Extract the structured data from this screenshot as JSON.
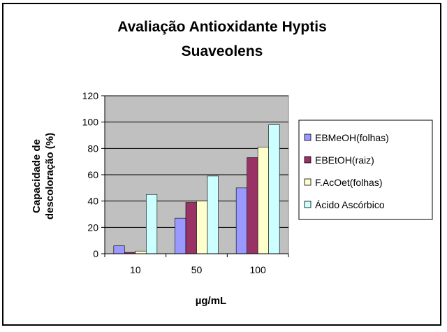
{
  "chart_data": {
    "type": "bar",
    "title_lines": [
      "Avaliação Antioxidante Hyptis",
      "Suaveolens"
    ],
    "xlabel": "µg/mL",
    "ylabel_lines": [
      "Capacidade de",
      "descoloração (%)"
    ],
    "categories": [
      "10",
      "50",
      "100"
    ],
    "ylim": [
      0,
      120
    ],
    "yticks": [
      0,
      20,
      40,
      60,
      80,
      100,
      120
    ],
    "grid": true,
    "legend_position": "right",
    "plot_background": "#c0c0c0",
    "series": [
      {
        "name": "EBMeOH(folhas)",
        "color": "#9999ff",
        "values": [
          6,
          27,
          50
        ]
      },
      {
        "name": "EBEtOH(raiz)",
        "color": "#993366",
        "values": [
          1,
          39,
          73
        ]
      },
      {
        "name": "F.AcOet(folhas)",
        "color": "#ffffcc",
        "values": [
          2,
          40,
          81
        ]
      },
      {
        "name": "Ácido Ascórbico",
        "color": "#ccffff",
        "values": [
          45,
          59,
          98
        ]
      }
    ]
  }
}
